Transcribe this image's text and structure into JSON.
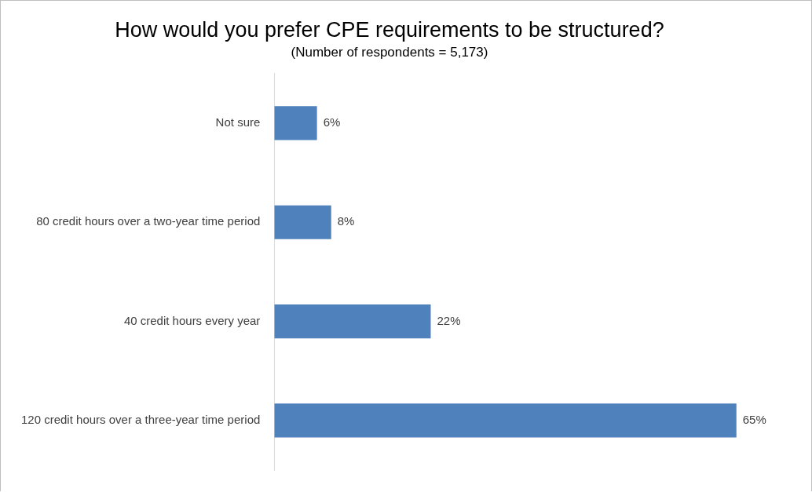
{
  "chart_data": {
    "type": "bar",
    "orientation": "horizontal",
    "title": "How would you prefer CPE requirements to be structured?",
    "subtitle": "(Number of respondents = 5,173)",
    "categories": [
      "Not sure",
      "80 credit hours over a two-year time period",
      "40 credit hours every year",
      "120 credit hours over a three-year time period"
    ],
    "values": [
      6,
      8,
      22,
      65
    ],
    "value_labels": [
      "6%",
      "8%",
      "22%",
      "65%"
    ],
    "color": "#4f81bd",
    "grid": false,
    "legend": false,
    "tick_labels": "y"
  }
}
